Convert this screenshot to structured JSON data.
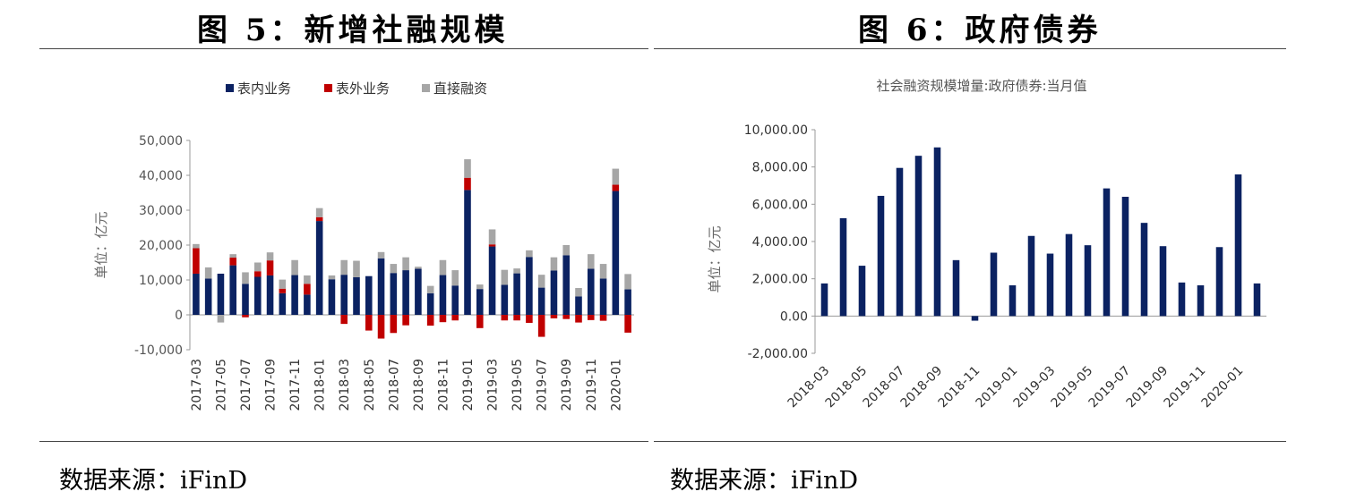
{
  "figures": {
    "left_title": "图 5：新增社融规模",
    "right_title": "图 6：政府债券"
  },
  "sources": {
    "left": "数据来源：iFinD",
    "right": "数据来源：iFinD"
  },
  "colors": {
    "navy": "#0b2262",
    "red": "#c00000",
    "gray": "#a6a6a6"
  },
  "chart_data": [
    {
      "type": "bar",
      "stacked": true,
      "title": "",
      "ylabel": "单位：亿元",
      "ylim": [
        -10000,
        50000
      ],
      "yticks": [
        -10000,
        0,
        10000,
        20000,
        30000,
        40000,
        50000
      ],
      "ytick_labels": [
        "-10,000",
        "0",
        "10,000",
        "20,000",
        "30,000",
        "40,000",
        "50,000"
      ],
      "legend_position": "top",
      "categories": [
        "2017-03",
        "2017-04",
        "2017-05",
        "2017-06",
        "2017-07",
        "2017-08",
        "2017-09",
        "2017-10",
        "2017-11",
        "2017-12",
        "2018-01",
        "2018-02",
        "2018-03",
        "2018-04",
        "2018-05",
        "2018-06",
        "2018-07",
        "2018-08",
        "2018-09",
        "2018-10",
        "2018-11",
        "2018-12",
        "2019-01",
        "2019-02",
        "2019-03",
        "2019-04",
        "2019-05",
        "2019-06",
        "2019-07",
        "2019-08",
        "2019-09",
        "2019-10",
        "2019-11",
        "2019-12",
        "2020-01",
        "2020-02"
      ],
      "xtick_labels": [
        "2017-03",
        "2017-05",
        "2017-07",
        "2017-09",
        "2017-11",
        "2018-01",
        "2018-03",
        "2018-05",
        "2018-07",
        "2018-09",
        "2018-11",
        "2019-01",
        "2019-03",
        "2019-05",
        "2019-07",
        "2019-09",
        "2019-11",
        "2020-01"
      ],
      "series": [
        {
          "name": "表内业务",
          "color": "#0b2262",
          "values": [
            11800,
            10400,
            11800,
            14200,
            8900,
            10900,
            11300,
            6200,
            11400,
            5800,
            26900,
            10200,
            11500,
            10800,
            11100,
            16200,
            12000,
            12800,
            13200,
            6200,
            11400,
            8400,
            35800,
            7400,
            19600,
            8600,
            11900,
            16600,
            7800,
            12700,
            17100,
            5300,
            13200,
            10400,
            35500,
            7300
          ]
        },
        {
          "name": "表外业务",
          "color": "#c00000",
          "values": [
            7300,
            0,
            0,
            2200,
            -700,
            1600,
            4300,
            1300,
            0,
            3100,
            1100,
            0,
            -2600,
            0,
            -4500,
            -6800,
            -5200,
            -3000,
            0,
            -3100,
            -2100,
            -1600,
            3500,
            -3800,
            600,
            -1600,
            -1600,
            -2300,
            -6300,
            -1000,
            -1200,
            -2200,
            -1500,
            -1700,
            1800,
            -5100
          ]
        },
        {
          "name": "直接融资",
          "color": "#a6a6a6",
          "values": [
            1200,
            3200,
            -2200,
            1000,
            3300,
            2500,
            2300,
            2600,
            4300,
            2400,
            2600,
            1100,
            4200,
            4700,
            0,
            1800,
            2600,
            3700,
            600,
            2100,
            4300,
            4400,
            5300,
            1300,
            4300,
            4300,
            1400,
            1900,
            3700,
            3800,
            2900,
            2400,
            4200,
            4200,
            4600,
            4400
          ]
        }
      ]
    },
    {
      "type": "bar",
      "title": "社会融资规模增量:政府债券:当月值",
      "ylabel": "单位：亿元",
      "ylim": [
        -2000,
        10000
      ],
      "yticks": [
        -2000,
        0,
        2000,
        4000,
        6000,
        8000,
        10000
      ],
      "ytick_labels": [
        "-2,000.00",
        "0.00",
        "2,000.00",
        "4,000.00",
        "6,000.00",
        "8,000.00",
        "10,000.00"
      ],
      "categories": [
        "2018-03",
        "2018-04",
        "2018-05",
        "2018-06",
        "2018-07",
        "2018-08",
        "2018-09",
        "2018-10",
        "2018-11",
        "2018-12",
        "2019-01",
        "2019-02",
        "2019-03",
        "2019-04",
        "2019-05",
        "2019-06",
        "2019-07",
        "2019-08",
        "2019-09",
        "2019-10",
        "2019-11",
        "2019-12",
        "2020-01",
        "2020-02"
      ],
      "xtick_labels": [
        "2018-03",
        "2018-05",
        "2018-07",
        "2018-09",
        "2018-11",
        "2019-01",
        "2019-03",
        "2019-05",
        "2019-07",
        "2019-09",
        "2019-11",
        "2020-01"
      ],
      "color": "#0b2262",
      "values": [
        1750,
        5250,
        2700,
        6450,
        7950,
        8600,
        9050,
        3000,
        -250,
        3400,
        1650,
        4300,
        3350,
        4400,
        3800,
        6850,
        6400,
        5000,
        3750,
        1800,
        1650,
        3700,
        7600,
        1750
      ]
    }
  ]
}
